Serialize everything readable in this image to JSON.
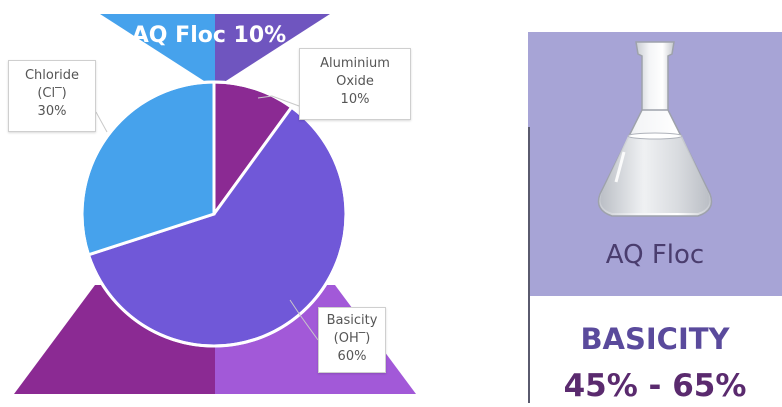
{
  "chart_data": {
    "type": "pie",
    "title": "AQ Floc 10%",
    "slices": [
      {
        "label_lines": [
          "Aluminium",
          "Oxide",
          "10%"
        ],
        "value": 10,
        "color": "#8b2a93"
      },
      {
        "label_lines": [
          "Basicity",
          "(OH‾)",
          "60%"
        ],
        "value": 60,
        "color": "#7058d8"
      },
      {
        "label_lines": [
          "Chloride",
          "(Cl‾)",
          "30%"
        ],
        "value": 30,
        "color": "#46a2ec"
      }
    ]
  },
  "decor_colors": {
    "top_left_triangle": "#46a2ec",
    "top_right_triangle": "#6f55bf",
    "bottom_left_triangle": "#8b2a93",
    "bottom_right_triangle": "#a259d8"
  },
  "card": {
    "image": "erlenmeyer-flask",
    "label": "AQ Floc",
    "heading": "BASICITY",
    "range": "45% - 65%",
    "bg_color": "#a7a4d6"
  }
}
